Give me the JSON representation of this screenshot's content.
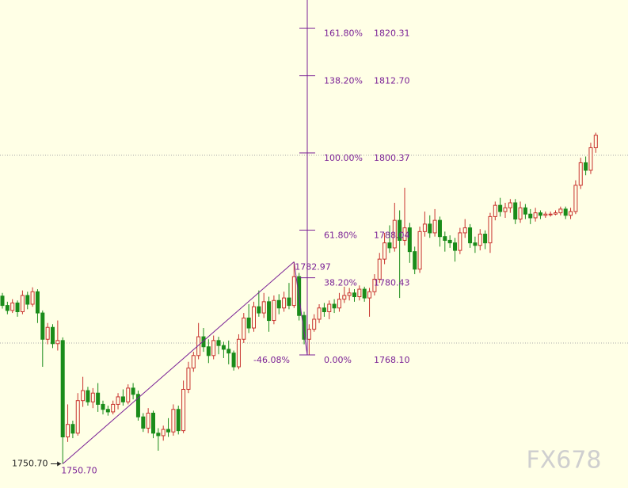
{
  "chart_data": {
    "type": "candlestick",
    "ylim": [
      1746.84,
      1824.8
    ],
    "up_color": "#c8322d",
    "down_color": "#1a8c1a",
    "annotation_color": "#7b2296",
    "open": [
      1777.5,
      1776.0,
      1775.2,
      1776.4,
      1775.0,
      1777.6,
      1776.2,
      1778.2,
      1774.8,
      1770.6,
      1772.5,
      1769.9,
      1770.4,
      1755.0,
      1757.0,
      1755.6,
      1760.8,
      1762.4,
      1760.6,
      1762.0,
      1760.2,
      1759.4,
      1759.0,
      1760.2,
      1761.4,
      1760.6,
      1762.8,
      1761.8,
      1758.2,
      1756.4,
      1758.8,
      1755.6,
      1755.2,
      1756.2,
      1755.8,
      1759.4,
      1756.0,
      1762.6,
      1766.0,
      1768.0,
      1771.0,
      1769.4,
      1768.0,
      1770.4,
      1769.6,
      1769.0,
      1768.4,
      1766.2,
      1770.6,
      1774.0,
      1772.4,
      1775.8,
      1774.8,
      1776.6,
      1773.6,
      1776.8,
      1775.6,
      1777.2,
      1776.0,
      1780.6,
      1774.4,
      1770.6,
      1772.2,
      1773.8,
      1775.6,
      1775.0,
      1776.2,
      1775.6,
      1777.0,
      1777.6,
      1778.0,
      1777.4,
      1778.6,
      1777.2,
      1778.2,
      1780.2,
      1783.4,
      1786.0,
      1785.2,
      1789.6,
      1786.4,
      1788.4,
      1784.6,
      1781.8,
      1787.8,
      1789.0,
      1787.6,
      1789.6,
      1787.0,
      1786.4,
      1786.0,
      1784.8,
      1787.6,
      1788.4,
      1786.0,
      1785.6,
      1787.4,
      1786.0,
      1790.2,
      1792.0,
      1791.0,
      1791.6,
      1792.4,
      1789.8,
      1791.6,
      1790.6,
      1790.0,
      1790.8,
      1790.4,
      1790.6,
      1790.6,
      1790.8,
      1791.4,
      1790.4,
      1791.0,
      1795.2,
      1798.8,
      1797.6,
      1801.2
    ],
    "high": [
      1778.0,
      1776.6,
      1777.0,
      1776.8,
      1778.4,
      1778.2,
      1778.9,
      1778.6,
      1775.2,
      1773.2,
      1773.0,
      1773.6,
      1770.9,
      1760.2,
      1757.6,
      1762.0,
      1764.6,
      1763.0,
      1762.8,
      1763.6,
      1760.8,
      1760.0,
      1760.8,
      1762.0,
      1762.6,
      1763.4,
      1763.6,
      1762.4,
      1758.8,
      1759.6,
      1759.2,
      1756.4,
      1756.8,
      1758.0,
      1760.2,
      1760.0,
      1764.0,
      1767.0,
      1768.6,
      1773.2,
      1772.4,
      1770.6,
      1771.2,
      1771.0,
      1770.2,
      1770.4,
      1768.8,
      1771.4,
      1774.8,
      1776.2,
      1776.6,
      1778.4,
      1778.0,
      1777.4,
      1777.6,
      1777.8,
      1778.2,
      1779.6,
      1782.97,
      1781.2,
      1775.0,
      1773.0,
      1774.6,
      1776.2,
      1776.4,
      1776.8,
      1777.0,
      1778.0,
      1779.0,
      1778.8,
      1778.6,
      1779.2,
      1779.0,
      1778.8,
      1781.0,
      1784.4,
      1787.6,
      1788.8,
      1792.4,
      1791.2,
      1794.8,
      1789.2,
      1785.4,
      1788.6,
      1791.0,
      1790.4,
      1791.4,
      1790.2,
      1787.8,
      1787.2,
      1786.8,
      1788.4,
      1789.8,
      1789.0,
      1787.0,
      1788.2,
      1788.0,
      1790.8,
      1792.6,
      1793.2,
      1792.4,
      1793.0,
      1793.0,
      1792.6,
      1792.2,
      1791.4,
      1791.6,
      1791.2,
      1791.0,
      1791.0,
      1791.2,
      1791.8,
      1791.8,
      1791.6,
      1796.0,
      1799.6,
      1799.8,
      1802.0,
      1803.6
    ],
    "low": [
      1775.5,
      1774.6,
      1774.8,
      1774.2,
      1774.6,
      1775.4,
      1775.8,
      1773.2,
      1766.2,
      1769.8,
      1769.2,
      1768.8,
      1750.7,
      1754.2,
      1754.8,
      1755.2,
      1759.8,
      1760.0,
      1759.6,
      1759.0,
      1758.6,
      1758.4,
      1758.6,
      1759.4,
      1760.0,
      1760.2,
      1761.0,
      1757.6,
      1755.8,
      1755.6,
      1754.8,
      1752.8,
      1754.4,
      1755.0,
      1755.2,
      1755.4,
      1755.6,
      1762.0,
      1765.4,
      1767.4,
      1768.6,
      1766.8,
      1767.4,
      1768.2,
      1767.6,
      1766.6,
      1765.6,
      1765.8,
      1770.0,
      1771.6,
      1771.8,
      1774.2,
      1774.0,
      1771.8,
      1773.0,
      1774.6,
      1775.0,
      1775.4,
      1775.6,
      1773.6,
      1769.8,
      1768.1,
      1771.8,
      1773.2,
      1774.2,
      1773.8,
      1774.8,
      1775.0,
      1776.4,
      1776.8,
      1776.6,
      1776.8,
      1776.6,
      1774.2,
      1777.6,
      1779.6,
      1782.6,
      1784.4,
      1784.6,
      1777.2,
      1785.6,
      1782.8,
      1781.0,
      1781.2,
      1787.0,
      1786.8,
      1787.0,
      1785.4,
      1784.6,
      1785.2,
      1783.0,
      1784.2,
      1786.8,
      1785.2,
      1784.4,
      1784.8,
      1785.0,
      1784.4,
      1789.6,
      1790.2,
      1790.0,
      1790.8,
      1789.0,
      1789.2,
      1789.8,
      1789.0,
      1789.4,
      1789.8,
      1790.0,
      1790.2,
      1790.4,
      1790.4,
      1789.8,
      1789.8,
      1790.6,
      1794.6,
      1796.8,
      1797.0,
      1800.4
    ],
    "close": [
      1776.0,
      1775.2,
      1776.4,
      1775.0,
      1777.6,
      1776.2,
      1778.2,
      1774.8,
      1770.6,
      1772.5,
      1769.9,
      1770.4,
      1755.0,
      1757.0,
      1755.6,
      1760.8,
      1762.4,
      1760.6,
      1762.0,
      1760.2,
      1759.4,
      1759.0,
      1760.2,
      1761.4,
      1760.6,
      1762.8,
      1761.8,
      1758.2,
      1756.4,
      1758.8,
      1755.6,
      1755.2,
      1756.2,
      1755.8,
      1759.4,
      1756.0,
      1762.6,
      1766.0,
      1768.0,
      1771.0,
      1769.4,
      1768.0,
      1770.4,
      1769.6,
      1769.0,
      1768.4,
      1766.2,
      1770.6,
      1774.0,
      1772.4,
      1775.8,
      1774.8,
      1776.6,
      1773.6,
      1776.8,
      1775.6,
      1777.2,
      1776.0,
      1780.6,
      1774.4,
      1770.6,
      1772.2,
      1773.8,
      1775.6,
      1775.0,
      1776.2,
      1775.6,
      1777.0,
      1777.6,
      1778.0,
      1777.4,
      1778.6,
      1777.2,
      1778.2,
      1780.2,
      1783.4,
      1786.0,
      1785.2,
      1789.6,
      1786.4,
      1788.4,
      1784.6,
      1781.8,
      1787.8,
      1789.0,
      1787.6,
      1789.6,
      1787.0,
      1786.4,
      1786.0,
      1784.8,
      1787.6,
      1788.4,
      1786.0,
      1785.6,
      1787.4,
      1786.0,
      1790.2,
      1792.0,
      1791.0,
      1791.6,
      1792.4,
      1789.8,
      1791.6,
      1790.6,
      1790.0,
      1790.8,
      1790.4,
      1790.6,
      1790.6,
      1790.8,
      1791.4,
      1790.4,
      1791.0,
      1795.2,
      1798.8,
      1797.6,
      1801.2,
      1803.2
    ],
    "fib_levels": [
      {
        "ratio": {
          "value": 161.8,
          "label": "161.80%"
        },
        "price": 1820.31
      },
      {
        "ratio": {
          "value": 138.2,
          "label": "138.20%"
        },
        "price": {
          "value": 1812.7,
          "label": "1812.70"
        }
      },
      {
        "ratio": {
          "value": 100,
          "label": "100.00%"
        },
        "price": 1800.37
      },
      {
        "ratio": {
          "value": 61.8,
          "label": "61.80%"
        },
        "price": 1788.04
      },
      {
        "ratio": {
          "value": 38.2,
          "label": "38.20%"
        },
        "price": 1780.43
      },
      {
        "ratio": {
          "value": 0,
          "label": "0.00%"
        },
        "price": {
          "value": 1768.1,
          "label": "1768.10"
        }
      }
    ],
    "swing_low": {
      "value": 1750.7,
      "label": "1750.70"
    },
    "swing_high": 1782.97,
    "extension": {
      "value": -46.08,
      "label": "-46.08%"
    },
    "price_marker": {
      "value": 1750.7,
      "label": "1750.70"
    },
    "watermark": "FX678"
  }
}
